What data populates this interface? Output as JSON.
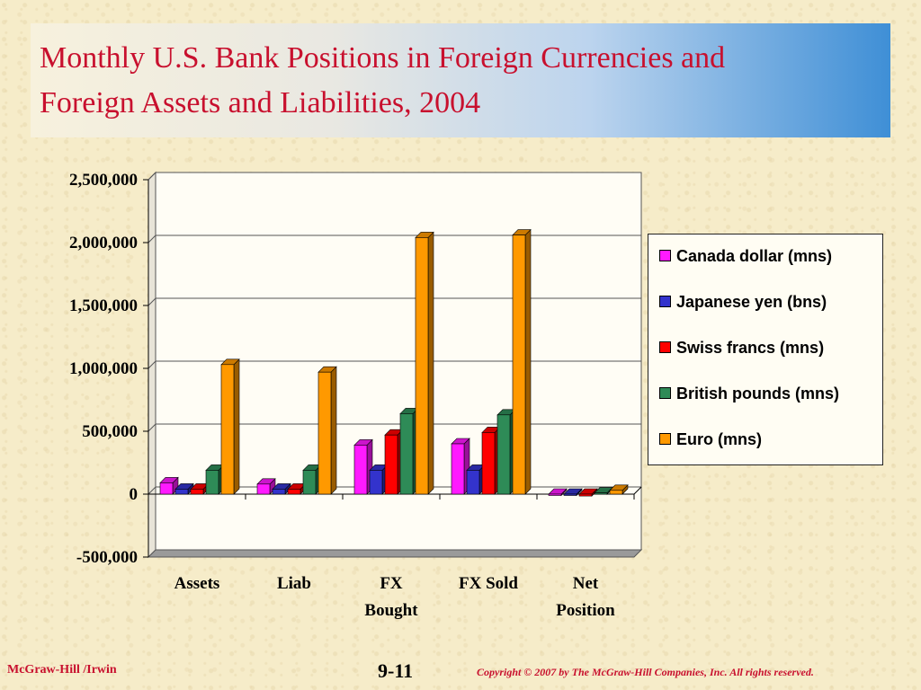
{
  "slide": {
    "title_line1": "Monthly U.S. Bank Positions in Foreign Currencies and",
    "title_line2": "Foreign Assets and Liabilities, 2004",
    "title_color": "#c8102e",
    "footer_left": "McGraw-Hill /Irwin",
    "page_number": "9-11",
    "copyright": "Copyright © 2007 by The McGraw-Hill Companies, Inc.  All rights reserved."
  },
  "chart_data": {
    "type": "bar",
    "categories": [
      "Assets",
      "Liab",
      "FX Bought",
      "FX Sold",
      "Net Position"
    ],
    "category_lines": [
      [
        "Assets"
      ],
      [
        "Liab"
      ],
      [
        "FX",
        "Bought"
      ],
      [
        "FX Sold"
      ],
      [
        "Net",
        "Position"
      ]
    ],
    "series": [
      {
        "name": "Canada dollar (mns)",
        "color": "#ff1aff",
        "values": [
          90000,
          80000,
          390000,
          400000,
          -5000
        ]
      },
      {
        "name": "Japanese yen (bns)",
        "color": "#3333cc",
        "values": [
          40000,
          40000,
          190000,
          190000,
          0
        ]
      },
      {
        "name": "Swiss francs (mns)",
        "color": "#ff0000",
        "values": [
          40000,
          40000,
          470000,
          490000,
          -15000
        ]
      },
      {
        "name": "British pounds (mns)",
        "color": "#2e8b57",
        "values": [
          190000,
          190000,
          640000,
          630000,
          10000
        ]
      },
      {
        "name": "Euro (mns)",
        "color": "#ff9900",
        "values": [
          1030000,
          970000,
          2040000,
          2060000,
          30000
        ]
      }
    ],
    "ylim": [
      -500000,
      2500000
    ],
    "yticks": [
      -500000,
      0,
      500000,
      1000000,
      1500000,
      2000000,
      2500000
    ],
    "ytick_labels": [
      "-500,000",
      "0",
      "500,000",
      "1,000,000",
      "1,500,000",
      "2,000,000",
      "2,500,000"
    ],
    "gridlines": true,
    "legend_position": "right",
    "three_d": true
  }
}
